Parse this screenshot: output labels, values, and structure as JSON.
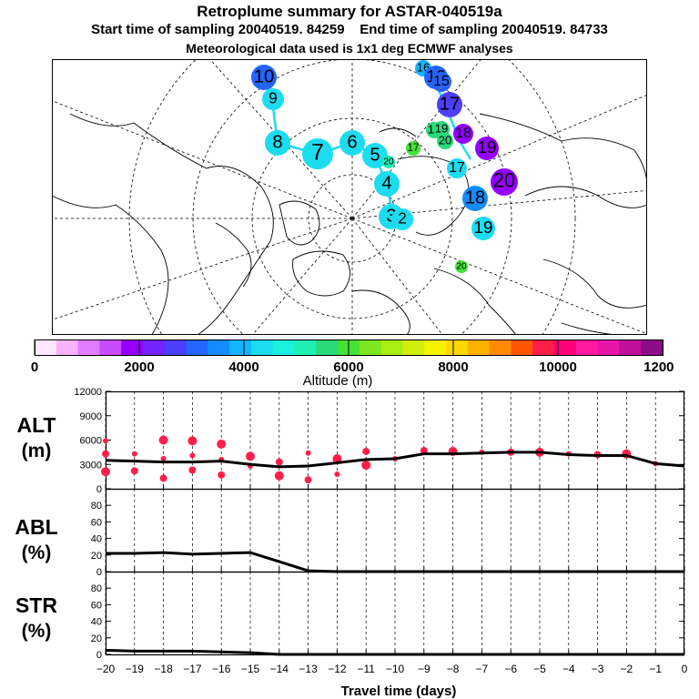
{
  "header": {
    "title": "Retroplume summary for ASTAR-040519a",
    "start_label": "Start time of sampling 20040519. 84259",
    "end_label": "End time of sampling 20040519. 84733",
    "met_label": "Meteorological data used is 1x1 deg ECMWF analyses"
  },
  "colorbar": {
    "colors": [
      "#ffe8ff",
      "#f7b3ff",
      "#e37dff",
      "#c94bff",
      "#9400ff",
      "#7422ff",
      "#4d3dff",
      "#2464ff",
      "#128cff",
      "#14b5ff",
      "#1cdcf0",
      "#1af0dc",
      "#1ef0b5",
      "#2ad97a",
      "#44e236",
      "#7be621",
      "#a9ed14",
      "#cfee0c",
      "#f3f300",
      "#ffd600",
      "#ffb100",
      "#ff8a00",
      "#ff5400",
      "#ff1f49",
      "#ff0078",
      "#ff1aa0",
      "#e816a8",
      "#c0109c",
      "#8e0b8a"
    ],
    "tick_labels": [
      "0",
      "2000",
      "4000",
      "6000",
      "8000",
      "10000",
      "12000"
    ],
    "label": "Altitude (m)"
  },
  "map_markers": [
    {
      "label": "10",
      "color": "#2464ff"
    },
    {
      "label": "9",
      "color": "#1cdcf0"
    },
    {
      "label": "8",
      "color": "#1cdcf0"
    },
    {
      "label": "7",
      "color": "#1cdcf0"
    },
    {
      "label": "6",
      "color": "#1cdcf0"
    },
    {
      "label": "5",
      "color": "#1cdcf0"
    },
    {
      "label": "4",
      "color": "#1cdcf0"
    },
    {
      "label": "3",
      "color": "#1cdcf0"
    },
    {
      "label": "2",
      "color": "#1cdcf0"
    },
    {
      "label": "16",
      "color": "#14b5ff"
    },
    {
      "label": "16",
      "color": "#2464ff"
    },
    {
      "label": "15",
      "color": "#2464ff"
    },
    {
      "label": "17",
      "color": "#4d3dff"
    },
    {
      "label": "18",
      "color": "#2ad97a"
    },
    {
      "label": "19",
      "color": "#2ad97a"
    },
    {
      "label": "20",
      "color": "#2ad97a"
    },
    {
      "label": "18",
      "color": "#9400ff"
    },
    {
      "label": "19",
      "color": "#9400ff"
    },
    {
      "label": "20",
      "color": "#9400ff"
    },
    {
      "label": "17",
      "color": "#44e236"
    },
    {
      "label": "20",
      "color": "#1ef0b5"
    },
    {
      "label": "17",
      "color": "#1cdcf0"
    },
    {
      "label": "18",
      "color": "#128cff"
    },
    {
      "label": "19",
      "color": "#1cdcf0"
    },
    {
      "label": "20",
      "color": "#44e236"
    }
  ],
  "chart_data": [
    {
      "type": "line",
      "name": "ALT",
      "ylabel": "ALT (m)",
      "x": [
        -20,
        -19,
        -18,
        -17,
        -16,
        -15,
        -14,
        -13,
        -12,
        -11,
        -10,
        -9,
        -8,
        -7,
        -6,
        -5,
        -4,
        -3,
        -2,
        -1,
        0
      ],
      "series": [
        {
          "name": "mean altitude",
          "values": [
            3500,
            3400,
            3300,
            3300,
            3400,
            3000,
            2700,
            2800,
            3200,
            3600,
            3700,
            4300,
            4300,
            4400,
            4500,
            4500,
            4200,
            4100,
            4100,
            3100,
            2800
          ]
        }
      ],
      "cluster_points": {
        "x": [
          -20,
          -20,
          -20,
          -19,
          -19,
          -18,
          -18,
          -18,
          -17,
          -17,
          -17,
          -16,
          -16,
          -16,
          -15,
          -15,
          -14,
          -14,
          -13,
          -13,
          -12,
          -12,
          -11,
          -11,
          -10,
          -9,
          -8,
          -7,
          -6,
          -5,
          -4,
          -3,
          -2,
          -1
        ],
        "y": [
          5900,
          4300,
          2100,
          4300,
          2200,
          6000,
          3700,
          1300,
          5900,
          4100,
          2300,
          5500,
          3600,
          1700,
          4000,
          2800,
          3300,
          1600,
          4400,
          1100,
          3700,
          1800,
          4600,
          2900,
          3700,
          4700,
          4600,
          4500,
          4500,
          4500,
          4300,
          4200,
          4300,
          3100
        ]
      },
      "xlim": [
        -20,
        0
      ],
      "ylim": [
        0,
        12000
      ],
      "yticks": [
        0,
        3000,
        6000,
        9000,
        12000
      ]
    },
    {
      "type": "line",
      "name": "ABL",
      "ylabel": "ABL (%)",
      "x": [
        -20,
        -19,
        -18,
        -17,
        -16,
        -15,
        -14,
        -13,
        -12,
        -11,
        -10,
        -9,
        -8,
        -7,
        -6,
        -5,
        -4,
        -3,
        -2,
        -1,
        0
      ],
      "series": [
        {
          "name": "fraction in ABL",
          "values": [
            22,
            22,
            23,
            21,
            22,
            23,
            12,
            1,
            0,
            0,
            0,
            0,
            0,
            0,
            0,
            0,
            0,
            0,
            0,
            0,
            0
          ]
        }
      ],
      "xlim": [
        -20,
        0
      ],
      "ylim": [
        0,
        100
      ],
      "yticks": [
        0,
        20,
        40,
        60,
        80
      ]
    },
    {
      "type": "line",
      "name": "STR",
      "ylabel": "STR (%)",
      "x": [
        -20,
        -19,
        -18,
        -17,
        -16,
        -15,
        -14,
        -13,
        -12,
        -11,
        -10,
        -9,
        -8,
        -7,
        -6,
        -5,
        -4,
        -3,
        -2,
        -1,
        0
      ],
      "series": [
        {
          "name": "fraction in stratosphere",
          "values": [
            5,
            4,
            4,
            4,
            3,
            2,
            0,
            0,
            0,
            0,
            0,
            0,
            0,
            0,
            0,
            0,
            0,
            0,
            0,
            0,
            0
          ]
        }
      ],
      "xlim": [
        -20,
        0
      ],
      "ylim": [
        0,
        100
      ],
      "yticks": [
        0,
        20,
        40,
        60,
        80
      ],
      "xticks": [
        -20,
        -19,
        -18,
        -17,
        -16,
        -15,
        -14,
        -13,
        -12,
        -11,
        -10,
        -9,
        -8,
        -7,
        -6,
        -5,
        -4,
        -3,
        -2,
        -1,
        0
      ],
      "xlabel": "Travel time (days)"
    }
  ],
  "panel_labels": {
    "alt_line1": "ALT",
    "alt_line2": "(m)",
    "abl_line1": "ABL",
    "abl_line2": "(%)",
    "str_line1": "STR",
    "str_line2": "(%)"
  }
}
